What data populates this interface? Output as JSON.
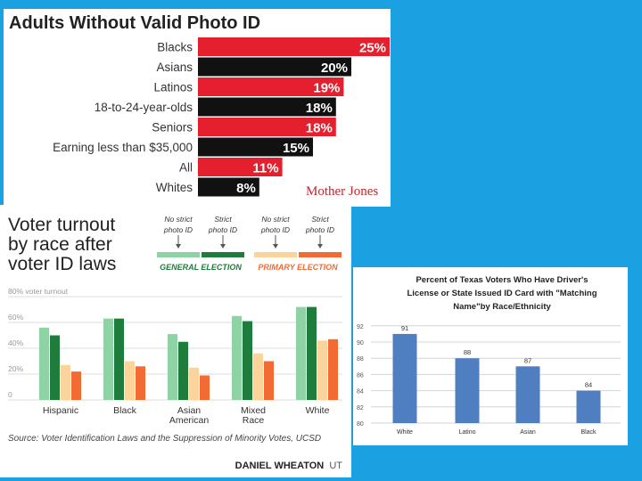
{
  "chart_data": [
    {
      "type": "bar",
      "orientation": "horizontal",
      "title": "Adults Without Valid Photo ID",
      "categories": [
        "Blacks",
        "Asians",
        "Latinos",
        "18-to-24-year-olds",
        "Seniors",
        "Earning less than $35,000",
        "All",
        "Whites"
      ],
      "values": [
        25,
        20,
        19,
        18,
        18,
        15,
        11,
        8
      ],
      "value_labels": [
        "25%",
        "20%",
        "19%",
        "18%",
        "18%",
        "15%",
        "11%",
        "8%"
      ],
      "bar_colors": [
        "#e5202e",
        "#111111",
        "#e5202e",
        "#111111",
        "#e5202e",
        "#111111",
        "#e5202e",
        "#111111"
      ],
      "source": "Mother Jones"
    },
    {
      "type": "bar",
      "title_lines": [
        "Voter turnout",
        "by race after",
        "voter ID laws"
      ],
      "categories": [
        [
          "Hispanic"
        ],
        [
          "Black"
        ],
        [
          "Asian",
          "American"
        ],
        [
          "Mixed",
          "Race"
        ],
        [
          "White"
        ]
      ],
      "series": [
        {
          "name": "General election, no strict photo ID",
          "color": "#8fd3a4",
          "values": [
            56,
            63,
            51,
            65,
            72
          ]
        },
        {
          "name": "General election, strict photo ID",
          "color": "#1e7d3c",
          "values": [
            50,
            63,
            45,
            61,
            72
          ]
        },
        {
          "name": "Primary election, no strict photo ID",
          "color": "#fdd39c",
          "values": [
            27,
            30,
            25,
            36,
            46
          ]
        },
        {
          "name": "Primary election, strict photo ID",
          "color": "#f26b35",
          "values": [
            22,
            26,
            19,
            30,
            47
          ]
        }
      ],
      "legend": {
        "groups": [
          {
            "label": "GENERAL ELECTION",
            "color": "#1e7d3c",
            "items": [
              {
                "line1": "No strict",
                "line2": "photo ID",
                "color": "#8fd3a4"
              },
              {
                "line1": "Strict",
                "line2": "photo ID",
                "color": "#1e7d3c"
              }
            ]
          },
          {
            "label": "PRIMARY ELECTION",
            "color": "#f26b35",
            "items": [
              {
                "line1": "No strict",
                "line2": "photo ID",
                "color": "#fdd39c"
              },
              {
                "line1": "Strict",
                "line2": "photo ID",
                "color": "#f26b35"
              }
            ]
          }
        ]
      },
      "ylim": [
        0,
        80
      ],
      "yticks": [
        0,
        20,
        40,
        60,
        80
      ],
      "ytick_labels": [
        "0",
        "20%",
        "40%",
        "60%",
        "80% voter turnout"
      ],
      "source": "Source: Voter Identification Laws and the Suppression of Minority Votes, UCSD",
      "credit_bold": "DANIEL WHEATON",
      "credit_light": "UT"
    },
    {
      "type": "bar",
      "title_lines": [
        "Percent of Texas Voters Who Have Driver's",
        "License or State Issued ID Card with \"Matching",
        "Name\"by Race/Ethnicity"
      ],
      "categories": [
        "White",
        "Latino",
        "Asian",
        "Black"
      ],
      "values": [
        91,
        88,
        87,
        84
      ],
      "value_labels": [
        "91",
        "88",
        "87",
        "84"
      ],
      "color": "#4f7fc1",
      "ylim": [
        80,
        92
      ],
      "yticks": [
        80,
        82,
        84,
        86,
        88,
        90,
        92
      ]
    }
  ]
}
